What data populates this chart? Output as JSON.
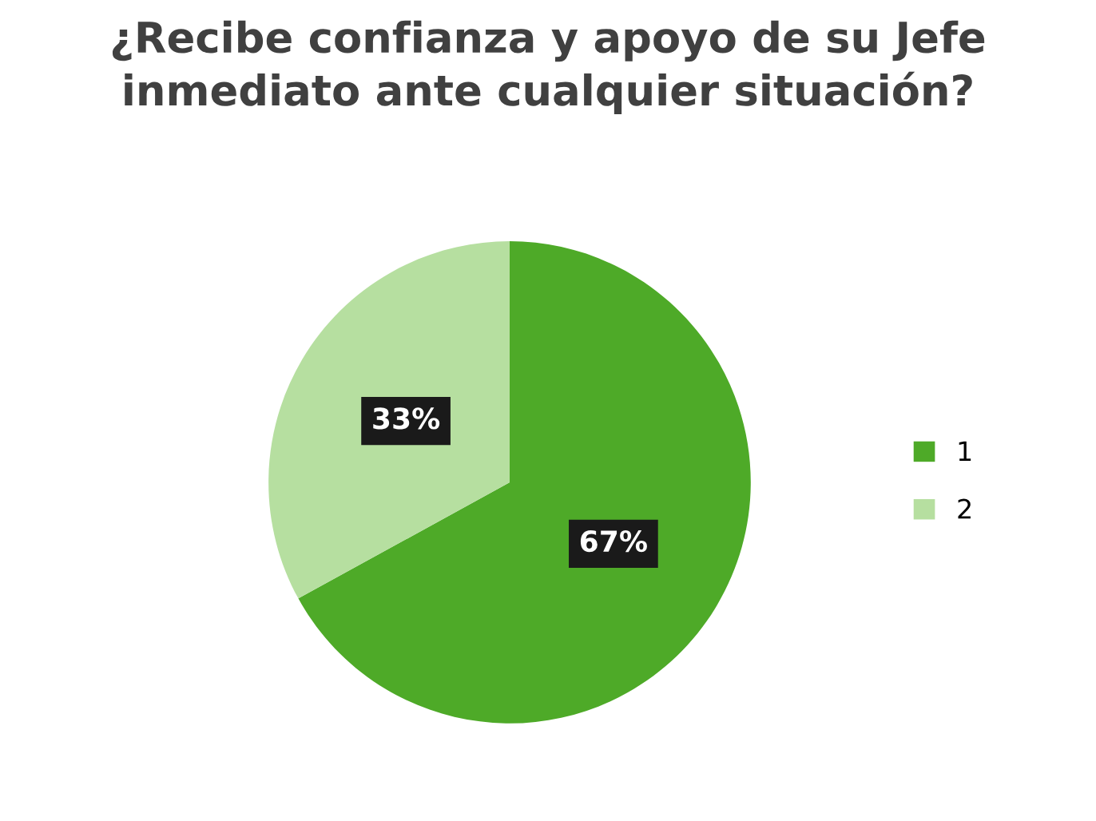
{
  "chart_data": {
    "type": "pie",
    "title": "¿Recibe confianza y apoyo de su Jefe\ninmediato ante cualquier situación?",
    "categories": [
      "1",
      "2"
    ],
    "values": [
      67,
      33
    ],
    "value_labels": [
      "67%",
      "33%"
    ],
    "colors": [
      "#4eaa28",
      "#b6dfa0"
    ],
    "legend": "right"
  }
}
